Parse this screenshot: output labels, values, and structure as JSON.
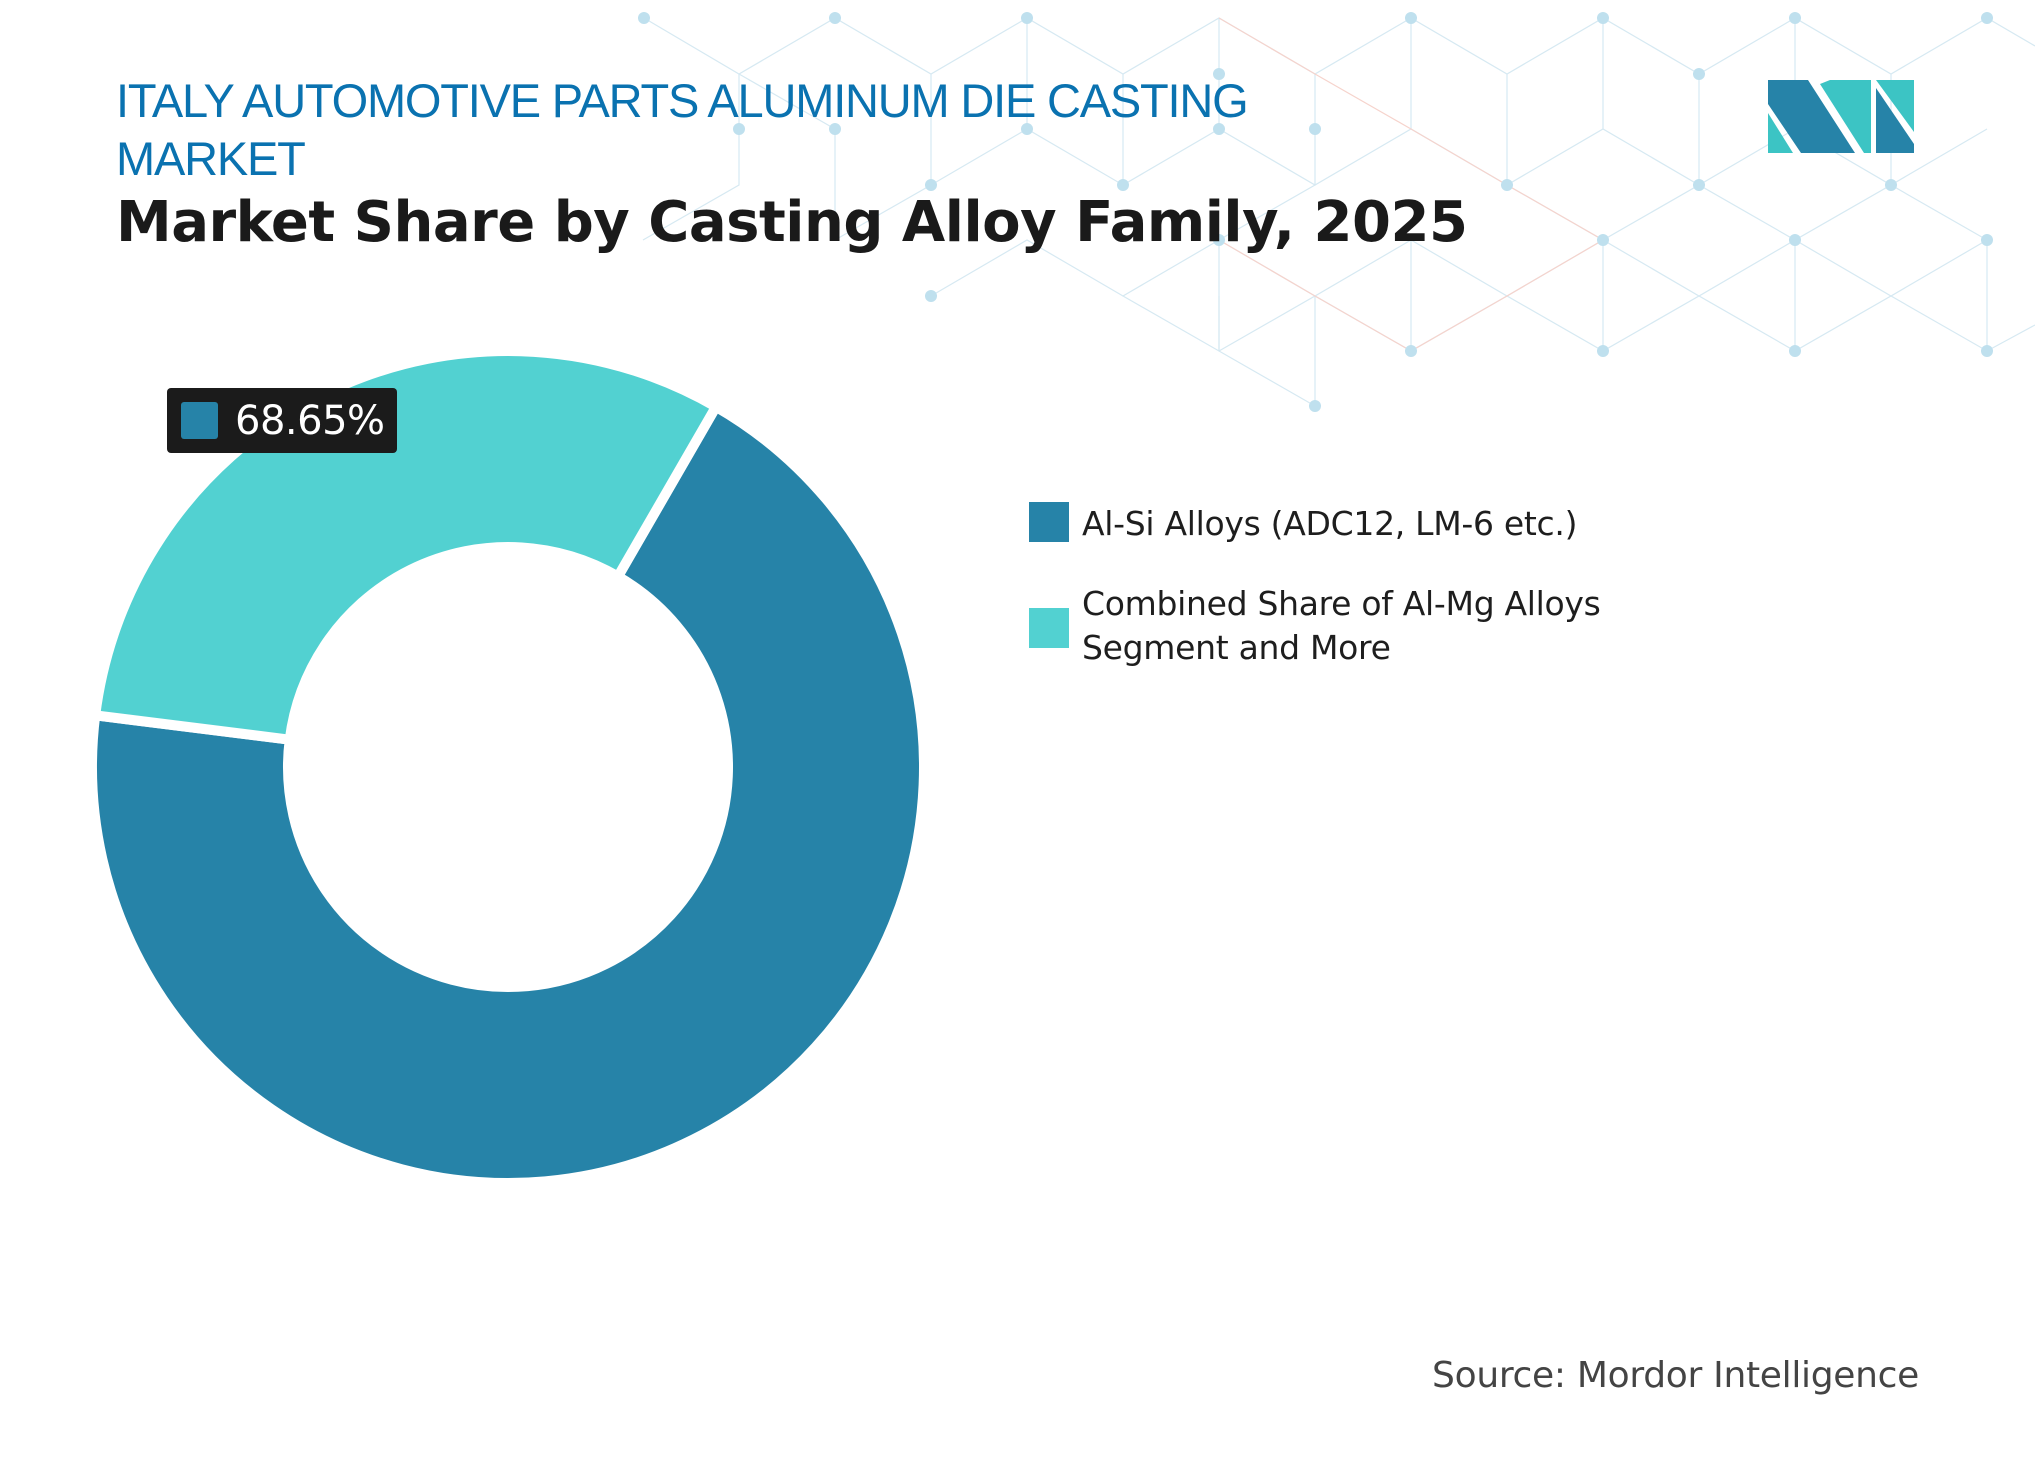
{
  "header": {
    "title_lines": [
      "ITALY AUTOMOTIVE PARTS ALUMINUM DIE CASTING",
      "MARKET"
    ],
    "subtitle": "Market Share by Casting Alloy Family, 2025"
  },
  "logo": {
    "name": "mordor-intelligence-logo-icon",
    "colors": [
      "#2683a8",
      "#3cc4c4"
    ]
  },
  "chart_data": {
    "type": "pie",
    "variant": "donut",
    "title": "Market Share by Casting Alloy Family, 2025",
    "categories": [
      "Al-Si Alloys (ADC12, LM-6 etc.)",
      "Combined Share of Al-Mg Alloys Segment and More"
    ],
    "values": [
      68.65,
      31.35
    ],
    "unit": "%",
    "colors": [
      "#2683a8",
      "#52d1d1"
    ],
    "data_labels": [
      {
        "category": "Al-Si Alloys (ADC12, LM-6 etc.)",
        "text": "68.65%"
      }
    ],
    "legend_position": "right",
    "start_angle_deg": 30,
    "inner_radius_ratio": 0.53
  },
  "value_label": {
    "text": "68.65%",
    "color": "#2683a8"
  },
  "legend": {
    "items": [
      {
        "label": "Al-Si Alloys (ADC12, LM-6 etc.)",
        "color": "#2683a8"
      },
      {
        "label": "Combined Share of Al-Mg Alloys Segment and More",
        "color": "#52d1d1"
      }
    ]
  },
  "footer": {
    "source": "Source: Mordor Intelligence"
  }
}
